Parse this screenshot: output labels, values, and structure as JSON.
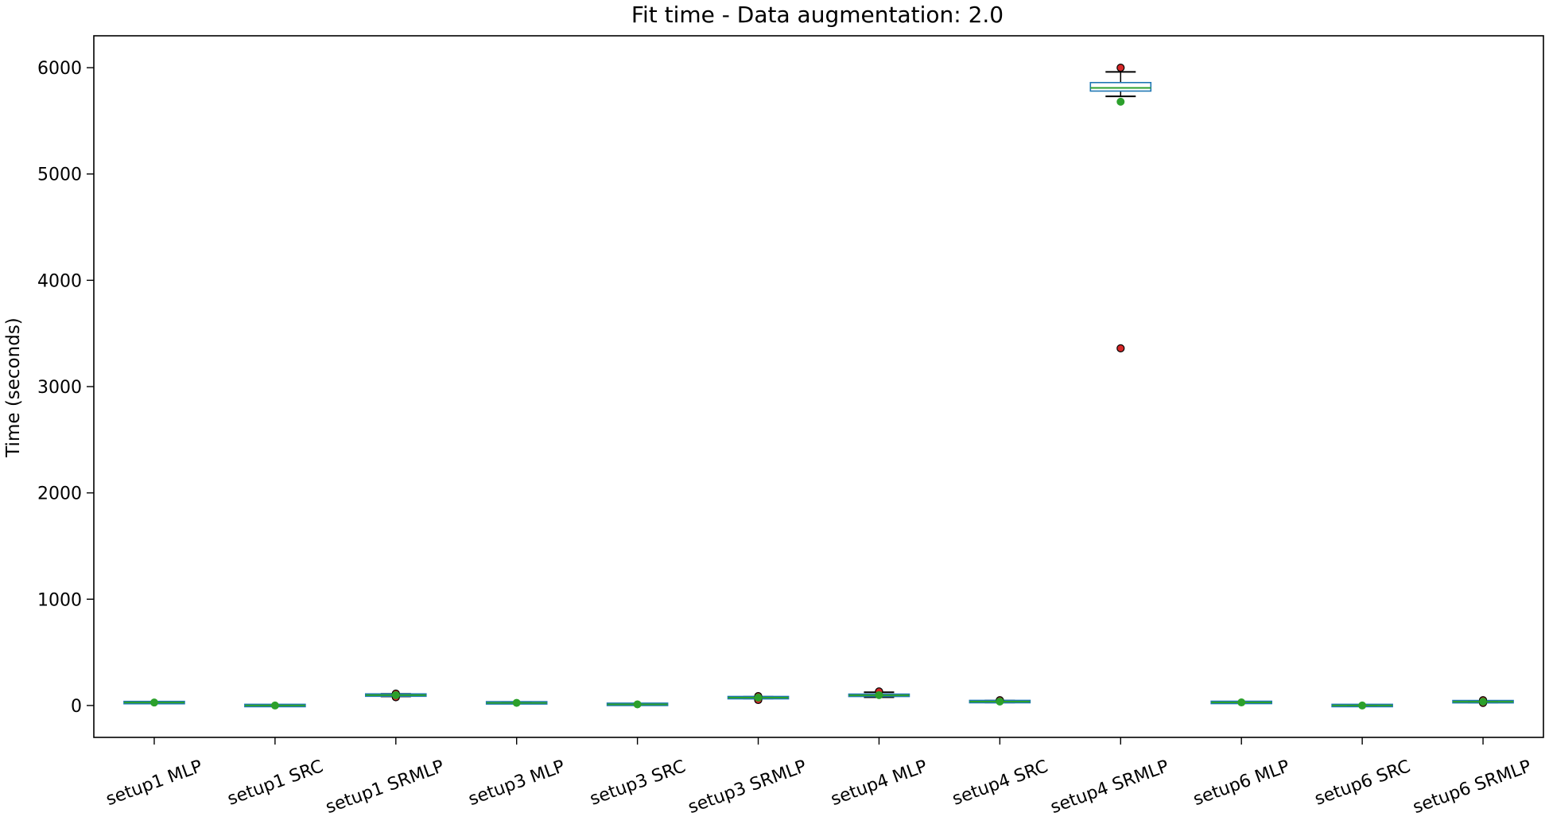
{
  "chart_data": {
    "type": "box",
    "title": "Fit time - Data augmentation: 2.0",
    "xlabel": "",
    "ylabel": "Time (seconds)",
    "ylim": [
      -300,
      6300
    ],
    "yticks": [
      0,
      1000,
      2000,
      3000,
      4000,
      5000,
      6000
    ],
    "grid": false,
    "legend": "none",
    "colors": {
      "box": "#1f77b4",
      "median": "#2ca02c",
      "whisker": "#000000",
      "outlier_fill": "#d62728",
      "mean_marker": "#2ca02c"
    },
    "categories": [
      "setup1 MLP",
      "setup1 SRC",
      "setup1 SRMLP",
      "setup3 MLP",
      "setup3 SRC",
      "setup3 SRMLP",
      "setup4 MLP",
      "setup4 SRC",
      "setup4 SRMLP",
      "setup6 MLP",
      "setup6 SRC",
      "setup6 SRMLP"
    ],
    "boxes": [
      {
        "label": "setup1 MLP",
        "whislo": 18,
        "q1": 24,
        "med": 28,
        "q3": 31,
        "whishi": 35,
        "mean": 28,
        "fliers": []
      },
      {
        "label": "setup1 SRC",
        "whislo": -4,
        "q1": -2,
        "med": 0,
        "q3": 2,
        "whishi": 4,
        "mean": 0,
        "fliers": []
      },
      {
        "label": "setup1 SRMLP",
        "whislo": 85,
        "q1": 93,
        "med": 98,
        "q3": 103,
        "whishi": 110,
        "mean": 98,
        "fliers": [
          78,
          112
        ]
      },
      {
        "label": "setup3 MLP",
        "whislo": 18,
        "q1": 22,
        "med": 25,
        "q3": 28,
        "whishi": 32,
        "mean": 25,
        "fliers": []
      },
      {
        "label": "setup3 SRC",
        "whislo": 5,
        "q1": 9,
        "med": 11,
        "q3": 13,
        "whishi": 16,
        "mean": 11,
        "fliers": []
      },
      {
        "label": "setup3 SRMLP",
        "whislo": 66,
        "q1": 70,
        "med": 74,
        "q3": 78,
        "whishi": 83,
        "mean": 74,
        "fliers": [
          52,
          88
        ]
      },
      {
        "label": "setup4 MLP",
        "whislo": 78,
        "q1": 88,
        "med": 96,
        "q3": 104,
        "whishi": 125,
        "mean": 98,
        "fliers": [
          132
        ]
      },
      {
        "label": "setup4 SRC",
        "whislo": 28,
        "q1": 33,
        "med": 37,
        "q3": 41,
        "whishi": 46,
        "mean": 37,
        "fliers": [
          50
        ]
      },
      {
        "label": "setup4 SRMLP",
        "whislo": 5730,
        "q1": 5780,
        "med": 5810,
        "q3": 5860,
        "whishi": 5960,
        "mean": 5680,
        "fliers": [
          3360,
          6000
        ]
      },
      {
        "label": "setup6 MLP",
        "whislo": 22,
        "q1": 26,
        "med": 29,
        "q3": 32,
        "whishi": 36,
        "mean": 29,
        "fliers": []
      },
      {
        "label": "setup6 SRC",
        "whislo": -4,
        "q1": -2,
        "med": 0,
        "q3": 2,
        "whishi": 4,
        "mean": 0,
        "fliers": []
      },
      {
        "label": "setup6 SRMLP",
        "whislo": 28,
        "q1": 33,
        "med": 36,
        "q3": 39,
        "whishi": 44,
        "mean": 36,
        "fliers": [
          24,
          50
        ]
      }
    ]
  }
}
